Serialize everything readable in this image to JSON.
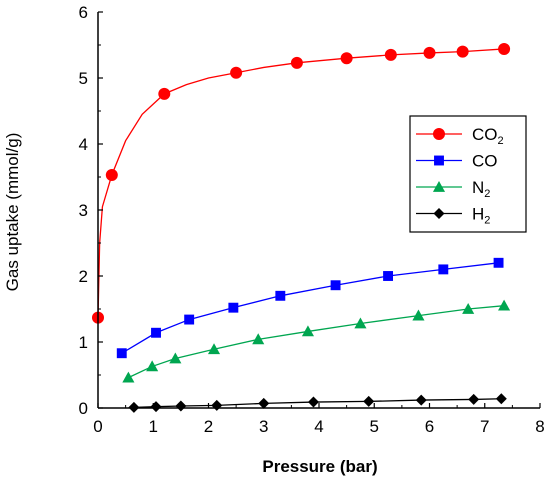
{
  "chart_data": {
    "type": "line",
    "xlabel": "Pressure (bar)",
    "ylabel": "Gas uptake (mmol/g)",
    "xlim": [
      0,
      8
    ],
    "ylim": [
      0,
      6
    ],
    "xticks": [
      "0",
      "1",
      "2",
      "3",
      "4",
      "5",
      "6",
      "7",
      "8"
    ],
    "yticks": [
      "0",
      "1",
      "2",
      "3",
      "4",
      "5",
      "6"
    ],
    "grid": false,
    "legend_position": "right",
    "series": [
      {
        "name": "CO",
        "name_sub": "2",
        "marker": "circle",
        "color": "#ff0000",
        "points": [
          [
            0.0,
            1.37
          ],
          [
            0.25,
            3.53
          ],
          [
            1.2,
            4.76
          ],
          [
            2.5,
            5.08
          ],
          [
            3.6,
            5.23
          ],
          [
            4.5,
            5.3
          ],
          [
            5.3,
            5.35
          ],
          [
            6.0,
            5.38
          ],
          [
            6.6,
            5.4
          ],
          [
            7.35,
            5.44
          ]
        ],
        "curve": [
          [
            0.0,
            1.37
          ],
          [
            0.03,
            2.5
          ],
          [
            0.08,
            3.05
          ],
          [
            0.25,
            3.53
          ],
          [
            0.5,
            4.05
          ],
          [
            0.8,
            4.45
          ],
          [
            1.2,
            4.76
          ],
          [
            1.6,
            4.9
          ],
          [
            2.0,
            5.0
          ],
          [
            2.5,
            5.08
          ],
          [
            3.0,
            5.16
          ],
          [
            3.6,
            5.23
          ],
          [
            4.5,
            5.3
          ],
          [
            5.3,
            5.35
          ],
          [
            6.0,
            5.38
          ],
          [
            6.6,
            5.4
          ],
          [
            7.35,
            5.44
          ]
        ]
      },
      {
        "name": "CO",
        "name_sub": "",
        "marker": "square",
        "color": "#0000ff",
        "points": [
          [
            0.43,
            0.83
          ],
          [
            1.05,
            1.14
          ],
          [
            1.65,
            1.34
          ],
          [
            2.45,
            1.52
          ],
          [
            3.3,
            1.7
          ],
          [
            4.3,
            1.86
          ],
          [
            5.25,
            2.0
          ],
          [
            6.25,
            2.1
          ],
          [
            7.25,
            2.2
          ]
        ]
      },
      {
        "name": "N",
        "name_sub": "2",
        "marker": "triangle",
        "color": "#00a650",
        "points": [
          [
            0.55,
            0.46
          ],
          [
            0.98,
            0.63
          ],
          [
            1.4,
            0.75
          ],
          [
            2.1,
            0.89
          ],
          [
            2.9,
            1.04
          ],
          [
            3.8,
            1.16
          ],
          [
            4.75,
            1.28
          ],
          [
            5.8,
            1.4
          ],
          [
            6.7,
            1.5
          ],
          [
            7.35,
            1.55
          ]
        ]
      },
      {
        "name": "H",
        "name_sub": "2",
        "marker": "diamond",
        "color": "#000000",
        "points": [
          [
            0.65,
            0.01
          ],
          [
            1.05,
            0.02
          ],
          [
            1.5,
            0.03
          ],
          [
            2.15,
            0.04
          ],
          [
            3.0,
            0.07
          ],
          [
            3.9,
            0.09
          ],
          [
            4.9,
            0.1
          ],
          [
            5.85,
            0.12
          ],
          [
            6.8,
            0.13
          ],
          [
            7.3,
            0.14
          ]
        ]
      }
    ]
  }
}
